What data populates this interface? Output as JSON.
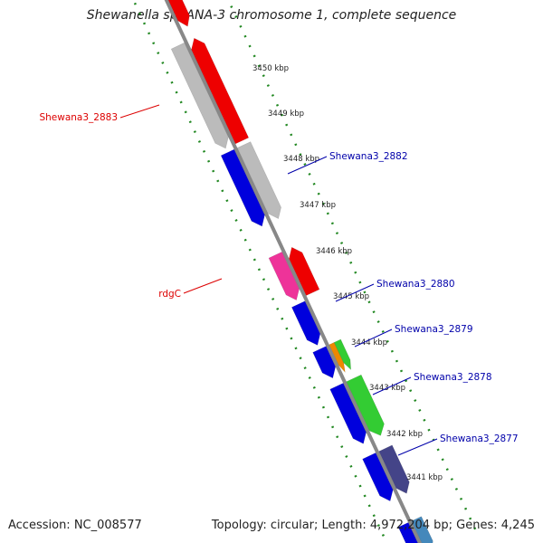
{
  "title": "Shewanella sp. ANA-3 chromosome 1, complete sequence",
  "footer": {
    "accession": "Accession: NC_008577",
    "summary": "Topology: circular; Length: 4,972,204 bp; Genes: 4,245"
  },
  "ticks": [
    "3450 kbp",
    "3449 kbp",
    "3448 kbp",
    "3447 kbp",
    "3446 kbp",
    "3445 kbp",
    "3444 kbp",
    "3443 kbp",
    "3442 kbp",
    "3441 kbp"
  ],
  "gene_labels": [
    {
      "text": "Shewana3_2883",
      "color": "#dd0000"
    },
    {
      "text": "rdgC",
      "color": "#dd0000"
    },
    {
      "text": "Shewana3_2882",
      "color": "#0000aa"
    },
    {
      "text": "Shewana3_2880",
      "color": "#0000aa"
    },
    {
      "text": "Shewana3_2879",
      "color": "#0000aa"
    },
    {
      "text": "Shewana3_2878",
      "color": "#0000aa"
    },
    {
      "text": "Shewana3_2877",
      "color": "#0000aa"
    }
  ],
  "colors": {
    "backbone": "#888888",
    "tick_dots": "#228822",
    "forward_strand_red": "#ee0000",
    "reverse_strand_blue": "#0000dd",
    "pseudo_gray": "#bbbbbb",
    "pink": "#ee3399",
    "orange": "#ee8800",
    "green": "#33cc33",
    "purple": "#444488",
    "steel_blue": "#4488bb"
  }
}
